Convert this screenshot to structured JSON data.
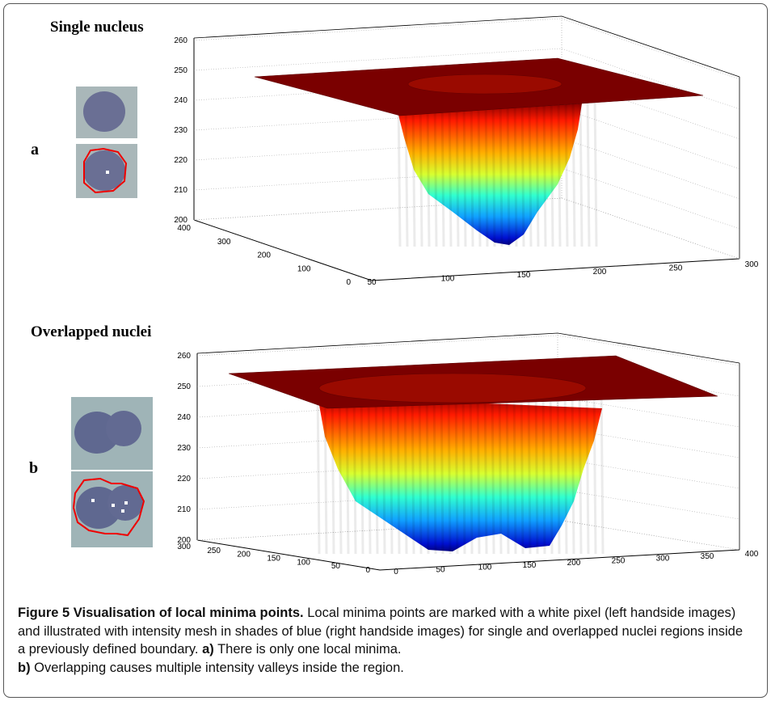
{
  "panels": [
    {
      "title": "Single nucleus",
      "letter": "a",
      "z_ticks": [
        200,
        210,
        220,
        230,
        240,
        250,
        260
      ],
      "depth_ticks": [
        0,
        100,
        200,
        300,
        400
      ],
      "x_ticks": [
        50,
        100,
        150,
        200,
        250,
        300
      ]
    },
    {
      "title": "Overlapped nuclei",
      "letter": "b",
      "z_ticks": [
        200,
        210,
        220,
        230,
        240,
        250,
        260
      ],
      "depth_ticks": [
        0,
        50,
        100,
        150,
        200,
        250,
        300
      ],
      "x_ticks": [
        0,
        50,
        100,
        150,
        200,
        250,
        300,
        350,
        400
      ]
    }
  ],
  "caption": {
    "label": "Figure 5",
    "title": "Visualisation of local minima points.",
    "text": "Local minima points are marked with a white pixel (left handside images) and illustrated with intensity mesh in shades of blue (right handside images) for single and overlapped nuclei regions inside a previously defined boundary.",
    "a_label": "a)",
    "a_text": "There is only one local minima.",
    "b_label": "b)",
    "b_text": "Overlapping causes multiple intensity valleys inside the region."
  }
}
